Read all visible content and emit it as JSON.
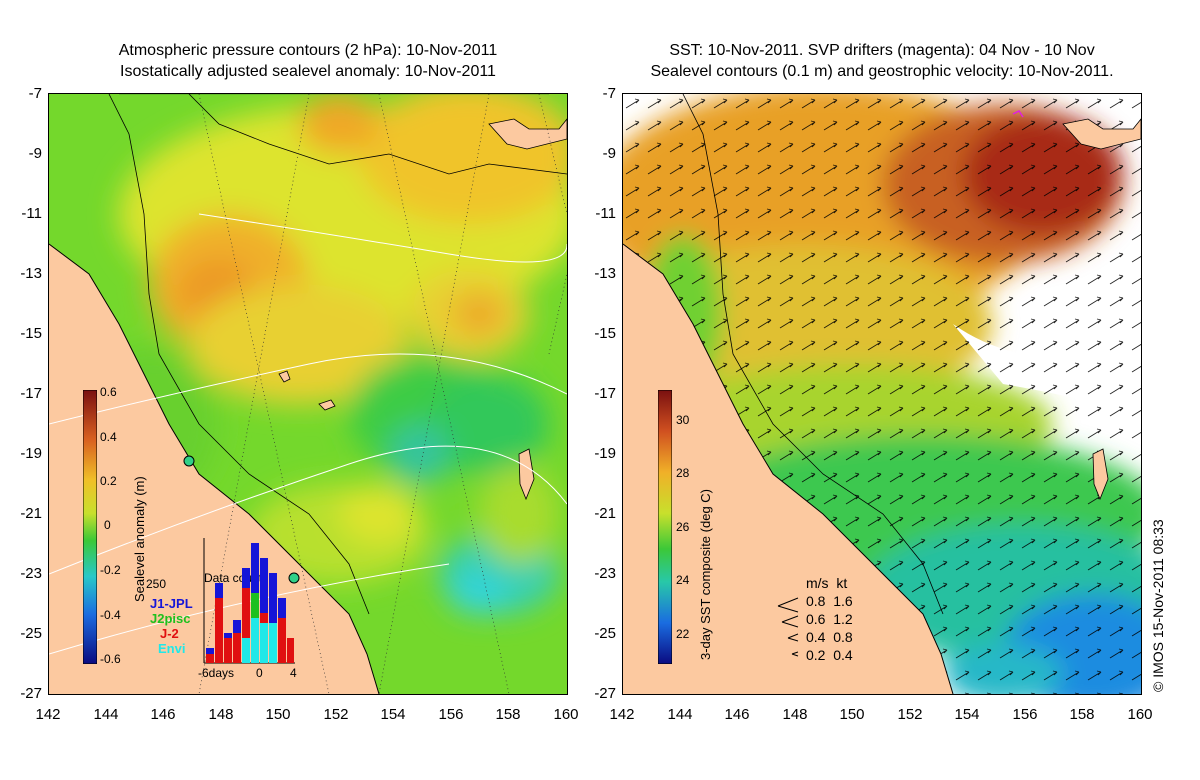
{
  "left_panel": {
    "title_line1": "Atmospheric pressure contours (2 hPa): 10-Nov-2011",
    "title_line2": "Isostatically adjusted sealevel anomaly: 10-Nov-2011",
    "colorbar": {
      "label": "Sealevel anomaly (m)",
      "ticks": [
        "0.6",
        "0.4",
        "0.2",
        "0",
        "-0.2",
        "-0.4",
        "-0.6"
      ],
      "range": [
        -0.6,
        0.6
      ]
    },
    "data_count": {
      "title": "Data count",
      "ymax_label": "250",
      "xlabels": [
        "-6days",
        "0",
        "4"
      ],
      "legend": [
        {
          "name": "J1-JPL",
          "color": "#1515d8"
        },
        {
          "name": "J2pisc",
          "color": "#1ec01e"
        },
        {
          "name": "J-2",
          "color": "#e01010"
        },
        {
          "name": "Envi",
          "color": "#20e8e8"
        }
      ]
    }
  },
  "right_panel": {
    "title_line1": "SST: 10-Nov-2011. SVP drifters (magenta): 04 Nov - 10 Nov",
    "title_line2": "Sealevel contours (0.1 m) and geostrophic velocity: 10-Nov-2011.",
    "colorbar": {
      "label": "3-day SST composite (deg C)",
      "ticks": [
        "30",
        "28",
        "26",
        "24",
        "22"
      ],
      "range": [
        21,
        31
      ]
    },
    "velocity_legend": {
      "header": "m/s  kt",
      "rows": [
        "0.8  1.6",
        "0.6  1.2",
        "0.4  0.8",
        "0.2  0.4"
      ]
    }
  },
  "axes": {
    "lat_labels": [
      "-7",
      "-9",
      "-11",
      "-13",
      "-15",
      "-17",
      "-19",
      "-21",
      "-23",
      "-25",
      "-27"
    ],
    "lon_labels": [
      "142",
      "144",
      "146",
      "148",
      "150",
      "152",
      "154",
      "156",
      "158",
      "160"
    ]
  },
  "copyright": "© IMOS 15-Nov-2011 08:33",
  "colors": {
    "land": "#fcc9a0",
    "anomaly_green": "#4fd42f",
    "anomaly_yellow": "#e8e432",
    "anomaly_orange": "#f0a020",
    "sst_red": "#c0391b",
    "sst_blue": "#1a8ce0"
  }
}
